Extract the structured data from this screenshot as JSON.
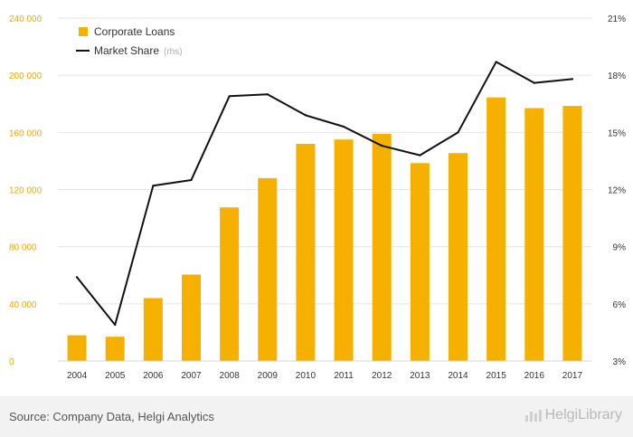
{
  "footer": {
    "source": "Source: Company Data, Helgi Analytics",
    "brand": "HelgiLibrary"
  },
  "colors": {
    "bar": "#f6b100",
    "line": "#111111",
    "grid": "#e4e4e4",
    "axis_text": "#333333",
    "left_axis_text": "#f0a800",
    "footer_bg": "#f2f2f2",
    "brand_text": "#b8b8b8"
  },
  "chart_data": {
    "type": "bar",
    "categories": [
      "2004",
      "2005",
      "2006",
      "2007",
      "2008",
      "2009",
      "2010",
      "2011",
      "2012",
      "2013",
      "2014",
      "2015",
      "2016",
      "2017"
    ],
    "series": [
      {
        "name": "Corporate Loans",
        "axis": "left",
        "type": "bar",
        "values": [
          18000,
          17000,
          44000,
          60500,
          107500,
          128000,
          152000,
          155000,
          159000,
          138500,
          145500,
          184500,
          177000,
          178500
        ]
      },
      {
        "name": "Market Share",
        "axis": "right",
        "type": "line",
        "values": [
          7.4,
          4.9,
          12.2,
          12.5,
          16.9,
          17.0,
          15.9,
          15.3,
          14.3,
          13.8,
          15.0,
          18.7,
          17.6,
          17.8
        ]
      }
    ],
    "legend": [
      {
        "label": "Corporate Loans",
        "marker": "square"
      },
      {
        "label": "Market Share",
        "suffix": "(rhs)",
        "marker": "line"
      }
    ],
    "left_axis": {
      "ylim": [
        0,
        240000
      ],
      "ticks": [
        0,
        40000,
        80000,
        120000,
        160000,
        200000,
        240000
      ],
      "tick_labels": [
        "0",
        "40 000",
        "80 000",
        "120 000",
        "160 000",
        "200 000",
        "240 000"
      ]
    },
    "right_axis": {
      "ylim": [
        3,
        21
      ],
      "ticks": [
        3,
        6,
        9,
        12,
        15,
        18,
        21
      ],
      "tick_labels": [
        "3%",
        "6%",
        "9%",
        "12%",
        "15%",
        "18%",
        "21%"
      ]
    },
    "grid": true,
    "legend_position": "top-left"
  }
}
